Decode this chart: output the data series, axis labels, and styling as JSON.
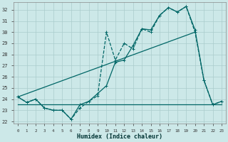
{
  "xlabel": "Humidex (Indice chaleur)",
  "background_color": "#cce8e8",
  "grid_color": "#aacccc",
  "line_color": "#006666",
  "xlim": [
    -0.5,
    23.5
  ],
  "ylim": [
    21.8,
    32.7
  ],
  "yticks": [
    22,
    23,
    24,
    25,
    26,
    27,
    28,
    29,
    30,
    31,
    32
  ],
  "xticks": [
    0,
    1,
    2,
    3,
    4,
    5,
    6,
    7,
    8,
    9,
    10,
    11,
    12,
    13,
    14,
    15,
    16,
    17,
    18,
    19,
    20,
    21,
    22,
    23
  ],
  "line1_x": [
    0,
    1,
    2,
    3,
    4,
    5,
    6,
    7,
    8,
    9,
    10,
    11,
    12,
    13,
    14,
    15,
    16,
    17,
    18,
    19,
    20,
    21,
    22,
    23
  ],
  "line1_y": [
    24.2,
    23.7,
    24.0,
    23.2,
    23.0,
    23.0,
    22.2,
    23.2,
    23.8,
    24.3,
    30.0,
    27.5,
    29.0,
    28.5,
    30.3,
    30.0,
    31.5,
    32.2,
    31.8,
    32.3,
    30.0,
    25.7,
    23.5,
    23.8
  ],
  "line2_x": [
    0,
    1,
    2,
    3,
    4,
    5,
    6,
    7,
    8,
    9,
    10,
    11,
    12,
    13,
    14,
    15,
    16,
    17,
    18,
    19,
    20,
    21,
    22,
    23
  ],
  "line2_y": [
    24.2,
    23.7,
    24.0,
    23.2,
    23.0,
    23.0,
    22.2,
    23.5,
    23.8,
    24.5,
    25.2,
    27.3,
    27.5,
    28.8,
    30.3,
    30.2,
    31.5,
    32.2,
    31.8,
    32.3,
    30.2,
    25.7,
    23.5,
    23.8
  ],
  "line3_x": [
    0,
    20
  ],
  "line3_y": [
    24.2,
    30.0
  ],
  "line4_x": [
    0,
    23
  ],
  "line4_y": [
    23.5,
    23.5
  ],
  "lw": 0.9,
  "ms": 2.0,
  "font_size": 6,
  "tick_size": 5
}
